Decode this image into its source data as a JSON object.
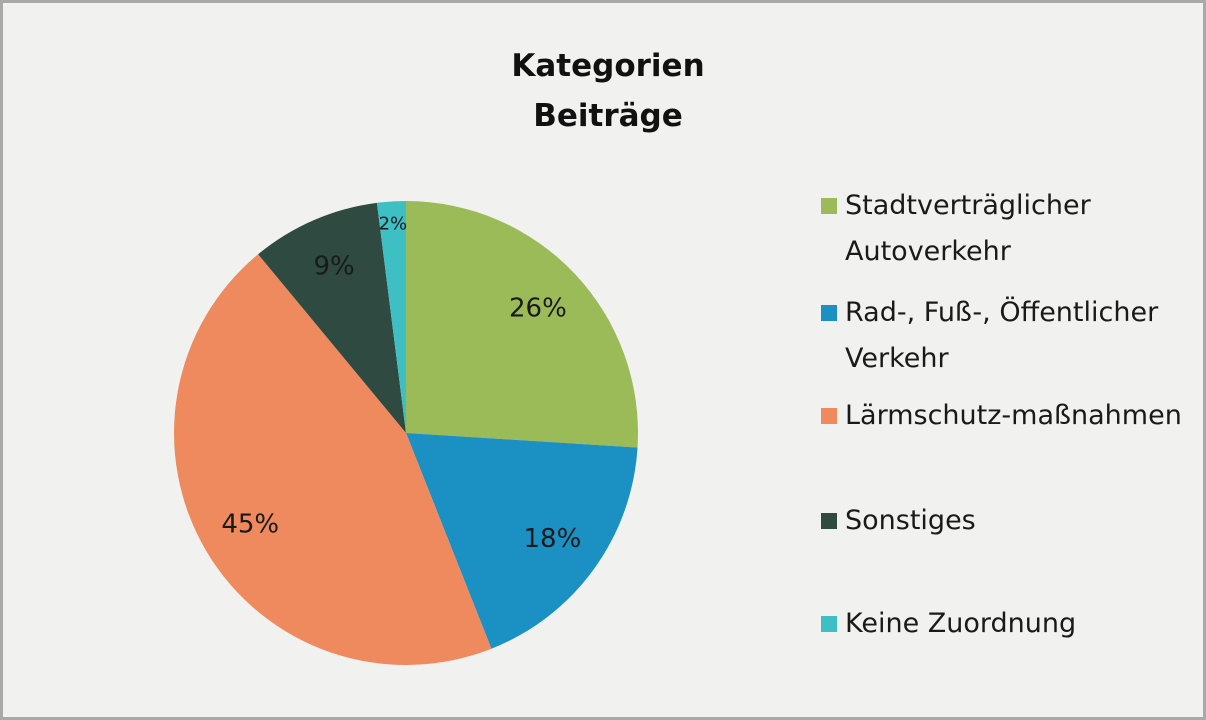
{
  "chart_data": {
    "type": "pie",
    "title": "Kategorien Beiträge",
    "categories": [
      "Stadtverträglicher Autoverkehr",
      "Rad-, Fuß-, Öffentlicher Verkehr",
      "Lärmschutz-maßnahmen",
      "Sonstiges",
      "Keine Zuordnung"
    ],
    "values": [
      26,
      18,
      45,
      9,
      2
    ],
    "value_labels": [
      "26%",
      "18%",
      "45%",
      "9%",
      "2%"
    ],
    "colors": [
      "#9bbb59",
      "#1b90c2",
      "#ef8a5f",
      "#2f4a40",
      "#3dbfc4"
    ],
    "legend": "right"
  }
}
